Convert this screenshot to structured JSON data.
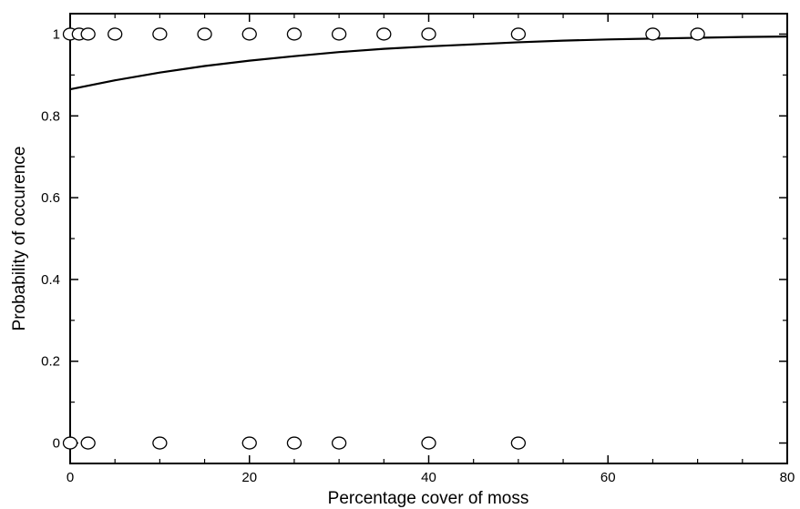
{
  "chart_data": {
    "type": "scatter",
    "title": "",
    "xlabel": "Percentage cover of moss",
    "ylabel": "Probability of occurence",
    "xlim": [
      0,
      80
    ],
    "ylim": [
      -0.05,
      1.05
    ],
    "x_ticks": [
      0,
      20,
      40,
      60,
      80
    ],
    "x_tick_labels": [
      "0",
      "20",
      "40",
      "60",
      "80"
    ],
    "x_minor_step": 5,
    "y_ticks": [
      0,
      0.2,
      0.4,
      0.6,
      0.8,
      1
    ],
    "y_tick_labels": [
      "0",
      "0.2",
      "0.4",
      "0.6",
      "0.8",
      "1"
    ],
    "y_minor_step": 0.1,
    "grid": false,
    "legend": "none",
    "points": [
      {
        "x": 0,
        "y": 1
      },
      {
        "x": 1,
        "y": 1
      },
      {
        "x": 2,
        "y": 1
      },
      {
        "x": 5,
        "y": 1
      },
      {
        "x": 10,
        "y": 1
      },
      {
        "x": 15,
        "y": 1
      },
      {
        "x": 20,
        "y": 1
      },
      {
        "x": 25,
        "y": 1
      },
      {
        "x": 30,
        "y": 1
      },
      {
        "x": 35,
        "y": 1
      },
      {
        "x": 40,
        "y": 1
      },
      {
        "x": 50,
        "y": 1
      },
      {
        "x": 65,
        "y": 1
      },
      {
        "x": 70,
        "y": 1
      },
      {
        "x": 0,
        "y": 0
      },
      {
        "x": 2,
        "y": 0
      },
      {
        "x": 10,
        "y": 0
      },
      {
        "x": 20,
        "y": 0
      },
      {
        "x": 25,
        "y": 0
      },
      {
        "x": 30,
        "y": 0
      },
      {
        "x": 40,
        "y": 0
      },
      {
        "x": 50,
        "y": 0
      }
    ],
    "fitted_curve": {
      "x": [
        0,
        5,
        10,
        15,
        20,
        25,
        30,
        35,
        40,
        45,
        50,
        55,
        60,
        65,
        70,
        75,
        80
      ],
      "y": [
        0.865,
        0.887,
        0.906,
        0.922,
        0.935,
        0.946,
        0.956,
        0.964,
        0.97,
        0.975,
        0.98,
        0.984,
        0.987,
        0.989,
        0.991,
        0.993,
        0.994
      ]
    },
    "colors": {
      "marker_stroke": "#000000",
      "marker_fill": "#ffffff",
      "curve": "#000000",
      "axis": "#000000"
    }
  }
}
